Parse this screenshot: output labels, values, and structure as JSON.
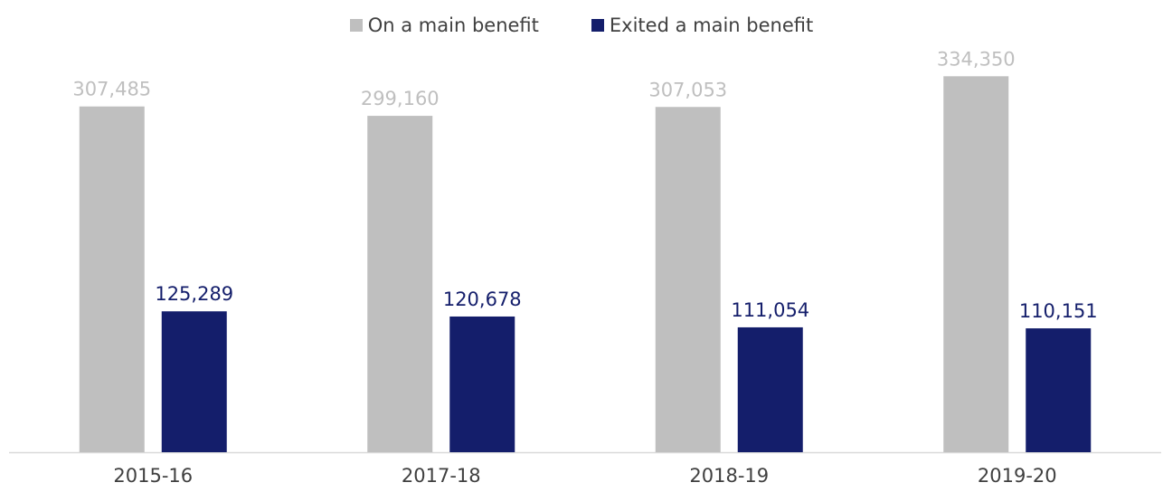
{
  "chart_data": {
    "type": "bar",
    "categories": [
      "2015-16",
      "2017-18",
      "2018-19",
      "2019-20"
    ],
    "series": [
      {
        "name": "On a main benefit",
        "values": [
          307485,
          299160,
          307053,
          334350
        ],
        "labels": [
          "307,485",
          "299,160",
          "307,053",
          "334,350"
        ],
        "color": "#bfbfbf",
        "label_color": "#bfbfbf"
      },
      {
        "name": "Exited a main benefit",
        "values": [
          125289,
          120678,
          111054,
          110151
        ],
        "labels": [
          "125,289",
          "120,678",
          "111,054",
          "110,151"
        ],
        "color": "#141e6b",
        "label_color": "#141e6b"
      }
    ],
    "title": "",
    "xlabel": "",
    "ylabel": "",
    "ylim": [
      0,
      370000
    ],
    "grid": false,
    "legend_position": "top-center",
    "axis_color": "#d9d9d9",
    "tick_label_color": "#404040"
  }
}
